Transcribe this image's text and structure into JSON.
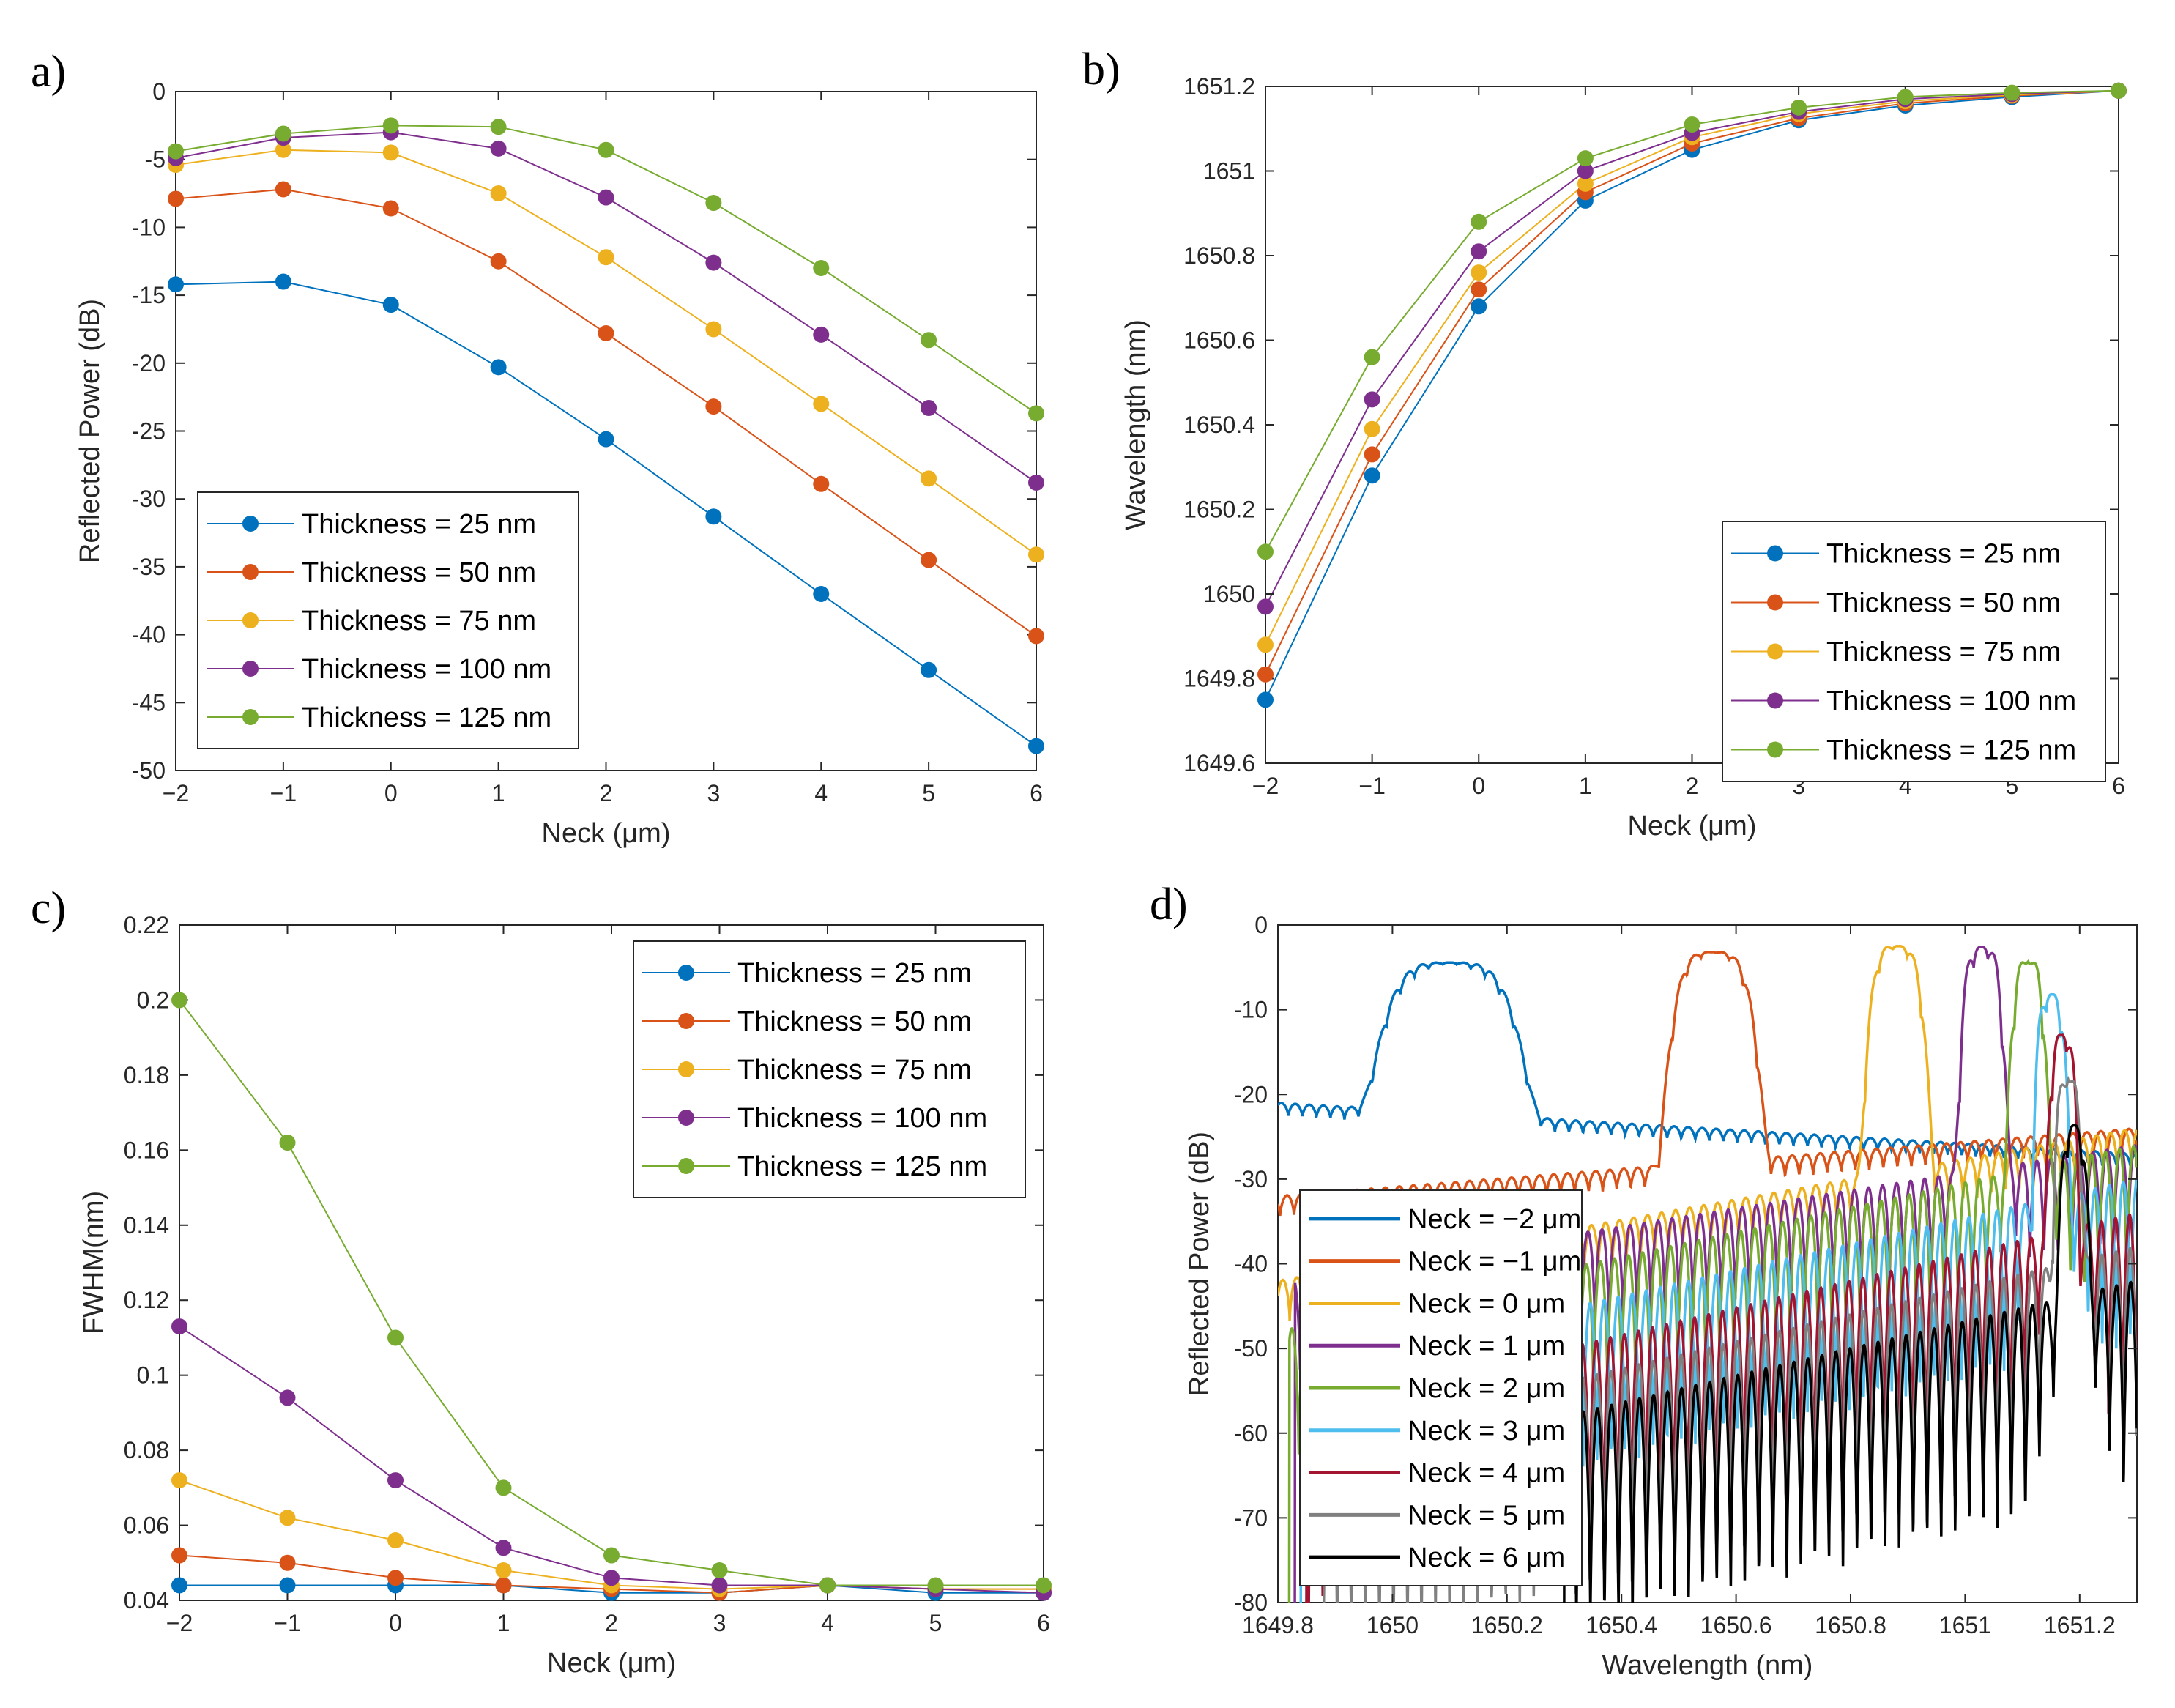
{
  "figure": {
    "colors": {
      "t25": "#0072BD",
      "t50": "#D95319",
      "t75": "#EDB120",
      "t100": "#7E2F8E",
      "t125": "#77AC30",
      "n3": "#4DBEEE",
      "n4": "#A2142F",
      "n5": "#808080",
      "n6": "#000000"
    }
  },
  "chart_data": [
    {
      "panel": "a)",
      "type": "line",
      "title": "",
      "xlabel": "Neck (μm)",
      "ylabel": "Reflected Power (dB)",
      "xlim": [
        -2,
        6
      ],
      "ylim": [
        -50,
        0
      ],
      "xticks": [
        -2,
        -1,
        0,
        1,
        2,
        3,
        4,
        5,
        6
      ],
      "xtick_labels": [
        "−2",
        "−1",
        "0",
        "1",
        "2",
        "3",
        "4",
        "5",
        "6"
      ],
      "yticks": [
        0,
        -5,
        -10,
        -15,
        -20,
        -25,
        -30,
        -35,
        -40,
        -45,
        -50
      ],
      "ytick_labels": [
        "0",
        "-5",
        "-10",
        "-15",
        "-20",
        "-25",
        "-30",
        "-35",
        "-40",
        "-45",
        "-50"
      ],
      "grid": false,
      "legend_position": "bottom-left",
      "x": [
        -2,
        -1,
        0,
        1,
        2,
        3,
        4,
        5,
        6
      ],
      "series": [
        {
          "name": "Thickness = 25 nm",
          "color_key": "t25",
          "values": [
            -14.2,
            -14.0,
            -15.7,
            -20.3,
            -25.6,
            -31.3,
            -37.0,
            -42.6,
            -48.2
          ]
        },
        {
          "name": "Thickness = 50 nm",
          "color_key": "t50",
          "values": [
            -7.9,
            -7.2,
            -8.6,
            -12.5,
            -17.8,
            -23.2,
            -28.9,
            -34.5,
            -40.1
          ]
        },
        {
          "name": "Thickness = 75 nm",
          "color_key": "t75",
          "values": [
            -5.4,
            -4.3,
            -4.5,
            -7.5,
            -12.2,
            -17.5,
            -23.0,
            -28.5,
            -34.1
          ]
        },
        {
          "name": "Thickness = 100 nm",
          "color_key": "t100",
          "values": [
            -4.9,
            -3.4,
            -3.0,
            -4.2,
            -7.8,
            -12.6,
            -17.9,
            -23.3,
            -28.8
          ]
        },
        {
          "name": "Thickness = 125 nm",
          "color_key": "t125",
          "values": [
            -4.4,
            -3.1,
            -2.5,
            -2.6,
            -4.3,
            -8.2,
            -13.0,
            -18.3,
            -23.7
          ]
        }
      ]
    },
    {
      "panel": "b)",
      "type": "line",
      "title": "",
      "xlabel": "Neck (μm)",
      "ylabel": "Wavelength (nm)",
      "xlim": [
        -2,
        6
      ],
      "ylim": [
        1649.6,
        1651.2
      ],
      "xticks": [
        -2,
        -1,
        0,
        1,
        2,
        3,
        4,
        5,
        6
      ],
      "xtick_labels": [
        "−2",
        "−1",
        "0",
        "1",
        "2",
        "3",
        "4",
        "5",
        "6"
      ],
      "yticks": [
        1651.2,
        1651,
        1650.8,
        1650.6,
        1650.4,
        1650.2,
        1650,
        1649.8,
        1649.6
      ],
      "ytick_labels": [
        "1651.2",
        "1651",
        "1650.8",
        "1650.6",
        "1650.4",
        "1650.2",
        "1650",
        "1649.8",
        "1649.6"
      ],
      "grid": false,
      "legend_position": "bottom-right",
      "x": [
        -2,
        -1,
        0,
        1,
        2,
        3,
        4,
        5,
        6
      ],
      "series": [
        {
          "name": "Thickness = 25 nm",
          "color_key": "t25",
          "values": [
            1649.75,
            1650.28,
            1650.68,
            1650.93,
            1651.05,
            1651.12,
            1651.155,
            1651.175,
            1651.19
          ]
        },
        {
          "name": "Thickness = 50 nm",
          "color_key": "t50",
          "values": [
            1649.81,
            1650.33,
            1650.72,
            1650.95,
            1651.065,
            1651.125,
            1651.16,
            1651.178,
            1651.19
          ]
        },
        {
          "name": "Thickness = 75 nm",
          "color_key": "t75",
          "values": [
            1649.88,
            1650.39,
            1650.76,
            1650.97,
            1651.08,
            1651.135,
            1651.165,
            1651.18,
            1651.19
          ]
        },
        {
          "name": "Thickness = 100 nm",
          "color_key": "t100",
          "values": [
            1649.97,
            1650.46,
            1650.81,
            1651.0,
            1651.09,
            1651.14,
            1651.17,
            1651.182,
            1651.19
          ]
        },
        {
          "name": "Thickness = 125 nm",
          "color_key": "t125",
          "values": [
            1650.1,
            1650.56,
            1650.88,
            1651.03,
            1651.11,
            1651.15,
            1651.175,
            1651.185,
            1651.19
          ]
        }
      ]
    },
    {
      "panel": "c)",
      "type": "line",
      "title": "",
      "xlabel": "Neck (μm)",
      "ylabel": "FWHM(nm)",
      "xlim": [
        -2,
        6
      ],
      "ylim": [
        0.04,
        0.22
      ],
      "xticks": [
        -2,
        -1,
        0,
        1,
        2,
        3,
        4,
        5,
        6
      ],
      "xtick_labels": [
        "−2",
        "−1",
        "0",
        "1",
        "2",
        "3",
        "4",
        "5",
        "6"
      ],
      "yticks": [
        0.22,
        0.2,
        0.18,
        0.16,
        0.14,
        0.12,
        0.1,
        0.08,
        0.06,
        0.04
      ],
      "ytick_labels": [
        "0.22",
        "0.2",
        "0.18",
        "0.16",
        "0.14",
        "0.12",
        "0.1",
        "0.08",
        "0.06",
        "0.04"
      ],
      "grid": false,
      "legend_position": "top-right",
      "x": [
        -2,
        -1,
        0,
        1,
        2,
        3,
        4,
        5,
        6
      ],
      "series": [
        {
          "name": "Thickness = 25 nm",
          "color_key": "t25",
          "values": [
            0.044,
            0.044,
            0.044,
            0.044,
            0.042,
            0.042,
            0.044,
            0.042,
            0.042
          ]
        },
        {
          "name": "Thickness = 50 nm",
          "color_key": "t50",
          "values": [
            0.052,
            0.05,
            0.046,
            0.044,
            0.043,
            0.042,
            0.044,
            0.043,
            0.043
          ]
        },
        {
          "name": "Thickness = 75 nm",
          "color_key": "t75",
          "values": [
            0.072,
            0.062,
            0.056,
            0.048,
            0.044,
            0.043,
            0.044,
            0.043,
            0.043
          ]
        },
        {
          "name": "Thickness = 100 nm",
          "color_key": "t100",
          "values": [
            0.113,
            0.094,
            0.072,
            0.054,
            0.046,
            0.044,
            0.044,
            0.043,
            0.042
          ]
        },
        {
          "name": "Thickness = 125 nm",
          "color_key": "t125",
          "values": [
            0.2,
            0.162,
            0.11,
            0.07,
            0.052,
            0.048,
            0.044,
            0.044,
            0.044
          ]
        }
      ]
    },
    {
      "panel": "d)",
      "type": "line",
      "title": "",
      "xlabel": "Wavelength (nm)",
      "ylabel": "Reflected Power (dB)",
      "xlim": [
        1649.8,
        1651.3
      ],
      "ylim": [
        -80,
        0
      ],
      "xticks": [
        1649.8,
        1650,
        1650.2,
        1650.4,
        1650.6,
        1650.8,
        1651,
        1651.2
      ],
      "xtick_labels": [
        "1649.8",
        "1650",
        "1650.2",
        "1650.4",
        "1650.6",
        "1650.8",
        "1651",
        "1651.2"
      ],
      "yticks": [
        0,
        -10,
        -20,
        -30,
        -40,
        -50,
        -60,
        -70,
        -80
      ],
      "ytick_labels": [
        "0",
        "-10",
        "-20",
        "-30",
        "-40",
        "-50",
        "-60",
        "-70",
        "-80"
      ],
      "grid": false,
      "legend_position": "bottom-left",
      "spectra": [
        {
          "name": "Neck = −2 μm",
          "color_key": "t25",
          "peak_wavelength": 1650.1,
          "peak_power": -4.5,
          "bandwidth": 0.1,
          "floor_start": -21,
          "floor_end": -27,
          "ripple_depth": 1.5,
          "onset": 1649.8
        },
        {
          "name": "Neck = −1 μm",
          "color_key": "t50",
          "peak_wavelength": 1650.56,
          "peak_power": -3.2,
          "bandwidth": 0.06,
          "floor_start": -32,
          "floor_end": -24,
          "ripple_depth": 2.5,
          "onset": 1649.8
        },
        {
          "name": "Neck = 0 μm",
          "color_key": "t75",
          "peak_wavelength": 1650.88,
          "peak_power": -2.5,
          "bandwidth": 0.04,
          "floor_start": -42,
          "floor_end": -24,
          "ripple_depth": 5,
          "onset": 1649.8
        },
        {
          "name": "Neck = 1 μm",
          "color_key": "t100",
          "peak_wavelength": 1651.03,
          "peak_power": -2.6,
          "bandwidth": 0.03,
          "floor_start": -42,
          "floor_end": -26,
          "ripple_depth": 12,
          "onset": 1649.83
        },
        {
          "name": "Neck = 2 μm",
          "color_key": "t125",
          "peak_wavelength": 1651.11,
          "peak_power": -4.3,
          "bandwidth": 0.025,
          "floor_start": -48,
          "floor_end": -26,
          "ripple_depth": 16,
          "onset": 1649.82
        },
        {
          "name": "Neck = 3 μm",
          "color_key": "n3",
          "peak_wavelength": 1651.15,
          "peak_power": -8.2,
          "bandwidth": 0.022,
          "floor_start": -53,
          "floor_end": -30,
          "ripple_depth": 20,
          "onset": 1649.84
        },
        {
          "name": "Neck = 4 μm",
          "color_key": "n4",
          "peak_wavelength": 1651.17,
          "peak_power": -13,
          "bandwidth": 0.02,
          "floor_start": -58,
          "floor_end": -34,
          "ripple_depth": 24,
          "onset": 1649.85
        },
        {
          "name": "Neck = 5 μm",
          "color_key": "n5",
          "peak_wavelength": 1651.18,
          "peak_power": -18.3,
          "bandwidth": 0.02,
          "floor_start": -62,
          "floor_end": -38,
          "ripple_depth": 26,
          "onset": 1649.88
        },
        {
          "name": "Neck = 6 μm",
          "color_key": "n6",
          "peak_wavelength": 1651.19,
          "peak_power": -23.7,
          "bandwidth": 0.02,
          "floor_start": -66,
          "floor_end": -42,
          "ripple_depth": 26,
          "onset": 1650.3
        }
      ]
    }
  ]
}
